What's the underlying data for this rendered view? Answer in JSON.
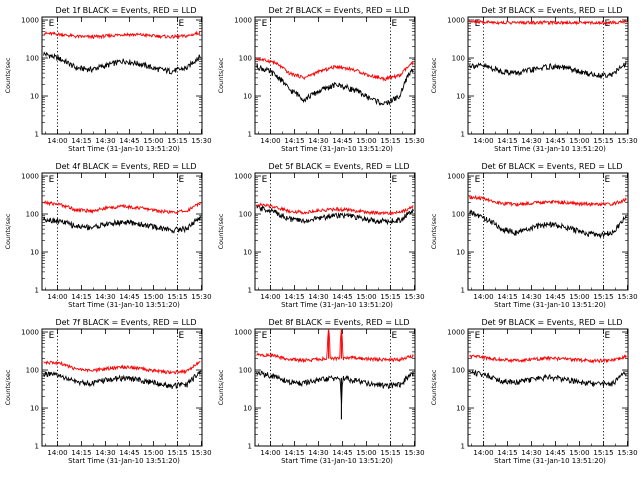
{
  "figure": {
    "x_axis_label": "Start Time (31-Jan-10 13:51:20)",
    "y_axis_label": "Counts/sec",
    "y_ticks": [
      "1",
      "10",
      "100",
      "1000"
    ],
    "marker_label": "E",
    "x_ticks": [
      "14:00",
      "14:15",
      "14:30",
      "14:45",
      "15:00",
      "15:15",
      "15:30"
    ],
    "series_colors": {
      "events": "#000000",
      "lld": "#ff0000"
    }
  },
  "chart_data": [
    {
      "type": "line",
      "title": "Det 1f BLACK = Events, RED = LLD",
      "x_range_minutes": [
        -1,
        99
      ],
      "x_tick_minutes": [
        8.67,
        23.67,
        38.67,
        53.67,
        68.67,
        83.67,
        98.67
      ],
      "ylim": [
        1,
        1200
      ],
      "yscale": "log",
      "markers_minutes": [
        8.7,
        83.7
      ],
      "series": [
        {
          "name": "Events",
          "x": [
            0,
            10,
            20,
            30,
            40,
            50,
            60,
            70,
            80,
            90,
            98
          ],
          "values": [
            130,
            95,
            55,
            50,
            65,
            85,
            70,
            52,
            45,
            55,
            110
          ]
        },
        {
          "name": "LLD",
          "x": [
            0,
            10,
            20,
            30,
            40,
            50,
            60,
            70,
            80,
            90,
            98
          ],
          "values": [
            450,
            420,
            370,
            360,
            380,
            420,
            410,
            380,
            360,
            380,
            470
          ]
        }
      ]
    },
    {
      "type": "line",
      "title": "Det 2f BLACK = Events, RED = LLD",
      "x_range_minutes": [
        -1,
        99
      ],
      "x_tick_minutes": [
        8.67,
        23.67,
        38.67,
        53.67,
        68.67,
        83.67,
        98.67
      ],
      "ylim": [
        1,
        1200
      ],
      "yscale": "log",
      "markers_minutes": [
        8.7,
        83.7
      ],
      "series": [
        {
          "name": "Events",
          "x": [
            0,
            10,
            20,
            30,
            40,
            50,
            60,
            70,
            80,
            90,
            98
          ],
          "values": [
            60,
            40,
            15,
            8,
            14,
            20,
            15,
            9,
            6,
            10,
            50
          ]
        },
        {
          "name": "LLD",
          "x": [
            0,
            10,
            20,
            30,
            40,
            50,
            60,
            70,
            80,
            90,
            98
          ],
          "values": [
            95,
            80,
            40,
            30,
            45,
            60,
            50,
            35,
            28,
            35,
            75
          ]
        }
      ]
    },
    {
      "type": "line",
      "title": "Det 3f BLACK = Events, RED = LLD",
      "x_range_minutes": [
        -1,
        99
      ],
      "x_tick_minutes": [
        8.67,
        23.67,
        38.67,
        53.67,
        68.67,
        83.67,
        98.67
      ],
      "ylim": [
        1,
        1200
      ],
      "yscale": "log",
      "markers_minutes": [
        8.7,
        83.7
      ],
      "series": [
        {
          "name": "Events",
          "x": [
            0,
            10,
            20,
            30,
            40,
            50,
            60,
            70,
            80,
            90,
            98
          ],
          "values": [
            65,
            60,
            45,
            40,
            50,
            60,
            55,
            42,
            35,
            38,
            70
          ]
        },
        {
          "name": "LLD",
          "x": [
            0,
            10,
            20,
            30,
            40,
            50,
            60,
            70,
            80,
            90,
            98
          ],
          "values": [
            900,
            880,
            860,
            850,
            860,
            870,
            860,
            850,
            850,
            860,
            900
          ]
        }
      ]
    },
    {
      "type": "line",
      "title": "Det 4f BLACK = Events, RED = LLD",
      "x_range_minutes": [
        -1,
        99
      ],
      "x_tick_minutes": [
        8.67,
        23.67,
        38.67,
        53.67,
        68.67,
        83.67,
        98.67
      ],
      "ylim": [
        1,
        1200
      ],
      "yscale": "log",
      "markers_minutes": [
        8.7,
        83.7
      ],
      "series": [
        {
          "name": "Events",
          "x": [
            0,
            10,
            20,
            30,
            40,
            50,
            60,
            70,
            80,
            90,
            98
          ],
          "values": [
            75,
            65,
            48,
            45,
            55,
            62,
            55,
            45,
            38,
            42,
            80
          ]
        },
        {
          "name": "LLD",
          "x": [
            0,
            10,
            20,
            30,
            40,
            50,
            60,
            70,
            80,
            90,
            98
          ],
          "values": [
            200,
            180,
            130,
            120,
            145,
            160,
            145,
            125,
            110,
            120,
            200
          ]
        }
      ]
    },
    {
      "type": "line",
      "title": "Det 5f BLACK = Events, RED = LLD",
      "x_range_minutes": [
        -1,
        99
      ],
      "x_tick_minutes": [
        8.67,
        23.67,
        38.67,
        53.67,
        68.67,
        83.67,
        98.67
      ],
      "ylim": [
        1,
        1200
      ],
      "yscale": "log",
      "markers_minutes": [
        8.7,
        83.7
      ],
      "series": [
        {
          "name": "Events",
          "x": [
            0,
            10,
            20,
            30,
            40,
            50,
            60,
            70,
            80,
            90,
            98
          ],
          "values": [
            150,
            120,
            75,
            65,
            80,
            95,
            85,
            70,
            65,
            70,
            130
          ]
        },
        {
          "name": "LLD",
          "x": [
            0,
            10,
            20,
            30,
            40,
            50,
            60,
            70,
            80,
            90,
            98
          ],
          "values": [
            180,
            160,
            120,
            110,
            125,
            135,
            125,
            110,
            105,
            110,
            160
          ]
        }
      ]
    },
    {
      "type": "line",
      "title": "Det 6f BLACK = Events, RED = LLD",
      "x_range_minutes": [
        -1,
        99
      ],
      "x_tick_minutes": [
        8.67,
        23.67,
        38.67,
        53.67,
        68.67,
        83.67,
        98.67
      ],
      "ylim": [
        1,
        1200
      ],
      "yscale": "log",
      "markers_minutes": [
        8.7,
        83.7
      ],
      "series": [
        {
          "name": "Events",
          "x": [
            0,
            10,
            20,
            30,
            40,
            50,
            60,
            70,
            80,
            90,
            98
          ],
          "values": [
            110,
            75,
            40,
            32,
            45,
            55,
            45,
            33,
            28,
            32,
            80
          ]
        },
        {
          "name": "LLD",
          "x": [
            0,
            10,
            20,
            30,
            40,
            50,
            60,
            70,
            80,
            90,
            98
          ],
          "values": [
            280,
            250,
            190,
            180,
            195,
            210,
            200,
            185,
            180,
            185,
            240
          ]
        }
      ]
    },
    {
      "type": "line",
      "title": "Det 7f BLACK = Events, RED = LLD",
      "x_range_minutes": [
        -1,
        99
      ],
      "x_tick_minutes": [
        8.67,
        23.67,
        38.67,
        53.67,
        68.67,
        83.67,
        98.67
      ],
      "ylim": [
        1,
        1200
      ],
      "yscale": "log",
      "markers_minutes": [
        8.7,
        83.7
      ],
      "series": [
        {
          "name": "Events",
          "x": [
            0,
            10,
            20,
            30,
            40,
            50,
            60,
            70,
            80,
            90,
            98
          ],
          "values": [
            80,
            70,
            48,
            45,
            55,
            62,
            55,
            45,
            38,
            42,
            85
          ]
        },
        {
          "name": "LLD",
          "x": [
            0,
            10,
            20,
            30,
            40,
            50,
            60,
            70,
            80,
            90,
            98
          ],
          "values": [
            160,
            150,
            105,
            95,
            110,
            120,
            110,
            95,
            85,
            95,
            160
          ]
        }
      ]
    },
    {
      "type": "line",
      "title": "Det 8f BLACK = Events, RED = LLD",
      "x_range_minutes": [
        -1,
        99
      ],
      "x_tick_minutes": [
        8.67,
        23.67,
        38.67,
        53.67,
        68.67,
        83.67,
        98.67
      ],
      "ylim": [
        1,
        1200
      ],
      "yscale": "log",
      "markers_minutes": [
        8.7,
        83.7
      ],
      "series": [
        {
          "name": "Events",
          "x": [
            0,
            10,
            20,
            30,
            40,
            50,
            52,
            53,
            54,
            60,
            70,
            80,
            90,
            98
          ],
          "values": [
            85,
            70,
            48,
            45,
            55,
            62,
            62,
            5,
            62,
            55,
            45,
            38,
            42,
            80
          ]
        },
        {
          "name": "LLD",
          "x": [
            0,
            10,
            20,
            30,
            40,
            44,
            45,
            46,
            52,
            53,
            54,
            60,
            70,
            80,
            90,
            98
          ],
          "values": [
            250,
            240,
            190,
            180,
            195,
            200,
            1200,
            200,
            200,
            1200,
            200,
            210,
            195,
            185,
            190,
            240
          ]
        }
      ]
    },
    {
      "type": "line",
      "title": "Det 9f BLACK = Events, RED = LLD",
      "x_range_minutes": [
        -1,
        99
      ],
      "x_tick_minutes": [
        8.67,
        23.67,
        38.67,
        53.67,
        68.67,
        83.67,
        98.67
      ],
      "ylim": [
        1,
        1200
      ],
      "yscale": "log",
      "markers_minutes": [
        8.7,
        83.7
      ],
      "series": [
        {
          "name": "Events",
          "x": [
            0,
            10,
            20,
            30,
            40,
            50,
            60,
            70,
            80,
            90,
            98
          ],
          "values": [
            90,
            75,
            52,
            48,
            58,
            65,
            58,
            48,
            42,
            45,
            85
          ]
        },
        {
          "name": "LLD",
          "x": [
            0,
            10,
            20,
            30,
            40,
            50,
            60,
            70,
            80,
            90,
            98
          ],
          "values": [
            230,
            210,
            185,
            180,
            195,
            205,
            195,
            180,
            175,
            180,
            230
          ]
        }
      ]
    }
  ]
}
